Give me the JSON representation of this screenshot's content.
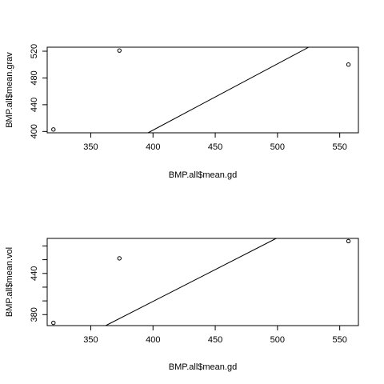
{
  "chart_data": [
    {
      "type": "scatter",
      "xlabel": "BMP.all$mean.gd",
      "ylabel": "BMP.all$mean.grav",
      "xlim": [
        315,
        565
      ],
      "ylim": [
        398,
        526
      ],
      "x_ticks": [
        350,
        400,
        450,
        500,
        550
      ],
      "y_ticks": [
        400,
        440,
        480,
        520
      ],
      "points": [
        {
          "x": 320,
          "y": 403
        },
        {
          "x": 373,
          "y": 521
        },
        {
          "x": 557,
          "y": 500
        }
      ],
      "line": {
        "x1": 396,
        "y1": 398,
        "x2": 525,
        "y2": 526
      },
      "grid": false
    },
    {
      "type": "scatter",
      "xlabel": "BMP.all$mean.gd",
      "ylabel": "BMP.all$mean.vol",
      "xlim": [
        315,
        565
      ],
      "ylim": [
        364,
        491
      ],
      "x_ticks": [
        350,
        400,
        450,
        500,
        550
      ],
      "y_ticks": [
        380,
        440
      ],
      "minor_y_ticks": [
        400,
        420,
        460,
        480
      ],
      "points": [
        {
          "x": 320,
          "y": 368
        },
        {
          "x": 373,
          "y": 462
        },
        {
          "x": 557,
          "y": 487
        }
      ],
      "line": {
        "x1": 362,
        "y1": 364,
        "x2": 499,
        "y2": 491
      },
      "grid": false
    }
  ]
}
